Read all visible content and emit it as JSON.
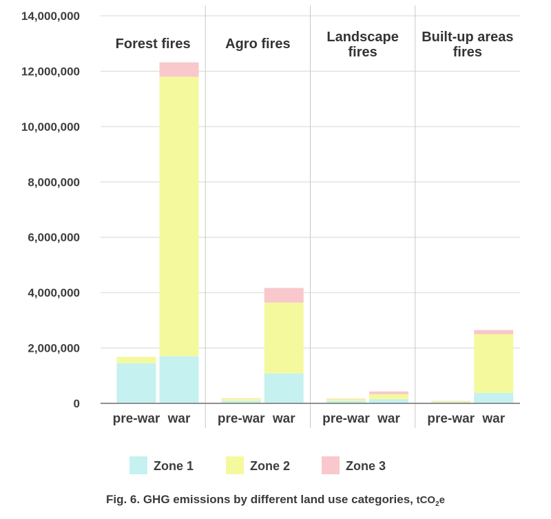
{
  "chart_data": {
    "type": "bar",
    "stacked": true,
    "panels": [
      {
        "title": [
          "Forest fires"
        ],
        "categories": [
          "pre-war",
          "war"
        ]
      },
      {
        "title": [
          "Agro fires"
        ],
        "categories": [
          "pre-war",
          "war"
        ]
      },
      {
        "title": [
          "Landscape",
          "fires"
        ],
        "categories": [
          "pre-war",
          "war"
        ]
      },
      {
        "title": [
          "Built-up areas",
          "fires"
        ],
        "categories": [
          "pre-war",
          "war"
        ]
      }
    ],
    "series": [
      {
        "name": "Zone 1",
        "color": "#c5f1f0",
        "values": [
          [
            1450000,
            1700000
          ],
          [
            90000,
            1080000
          ],
          [
            90000,
            150000
          ],
          [
            40000,
            380000
          ]
        ]
      },
      {
        "name": "Zone 2",
        "color": "#f5f99e",
        "values": [
          [
            230000,
            10100000
          ],
          [
            80000,
            2560000
          ],
          [
            70000,
            180000
          ],
          [
            40000,
            2120000
          ]
        ]
      },
      {
        "name": "Zone 3",
        "color": "#f8c8cc",
        "values": [
          [
            0,
            520000
          ],
          [
            15000,
            530000
          ],
          [
            15000,
            100000
          ],
          [
            10000,
            150000
          ]
        ]
      }
    ],
    "yticks": [
      "0",
      "2,000,000",
      "4,000,000",
      "6,000,000",
      "8,000,000",
      "10,000,000",
      "12,000,000",
      "14,000,000"
    ],
    "ytick_values": [
      0,
      2000000,
      4000000,
      6000000,
      8000000,
      10000000,
      12000000,
      14000000
    ],
    "ylim": [
      0,
      14000000
    ],
    "grid": true,
    "legend_position": "bottom"
  },
  "caption": {
    "text": "Fig. 6. GHG emissions by different land use categories, ",
    "unit_main": "tCO",
    "unit_sub": "2",
    "unit_tail": "e"
  }
}
